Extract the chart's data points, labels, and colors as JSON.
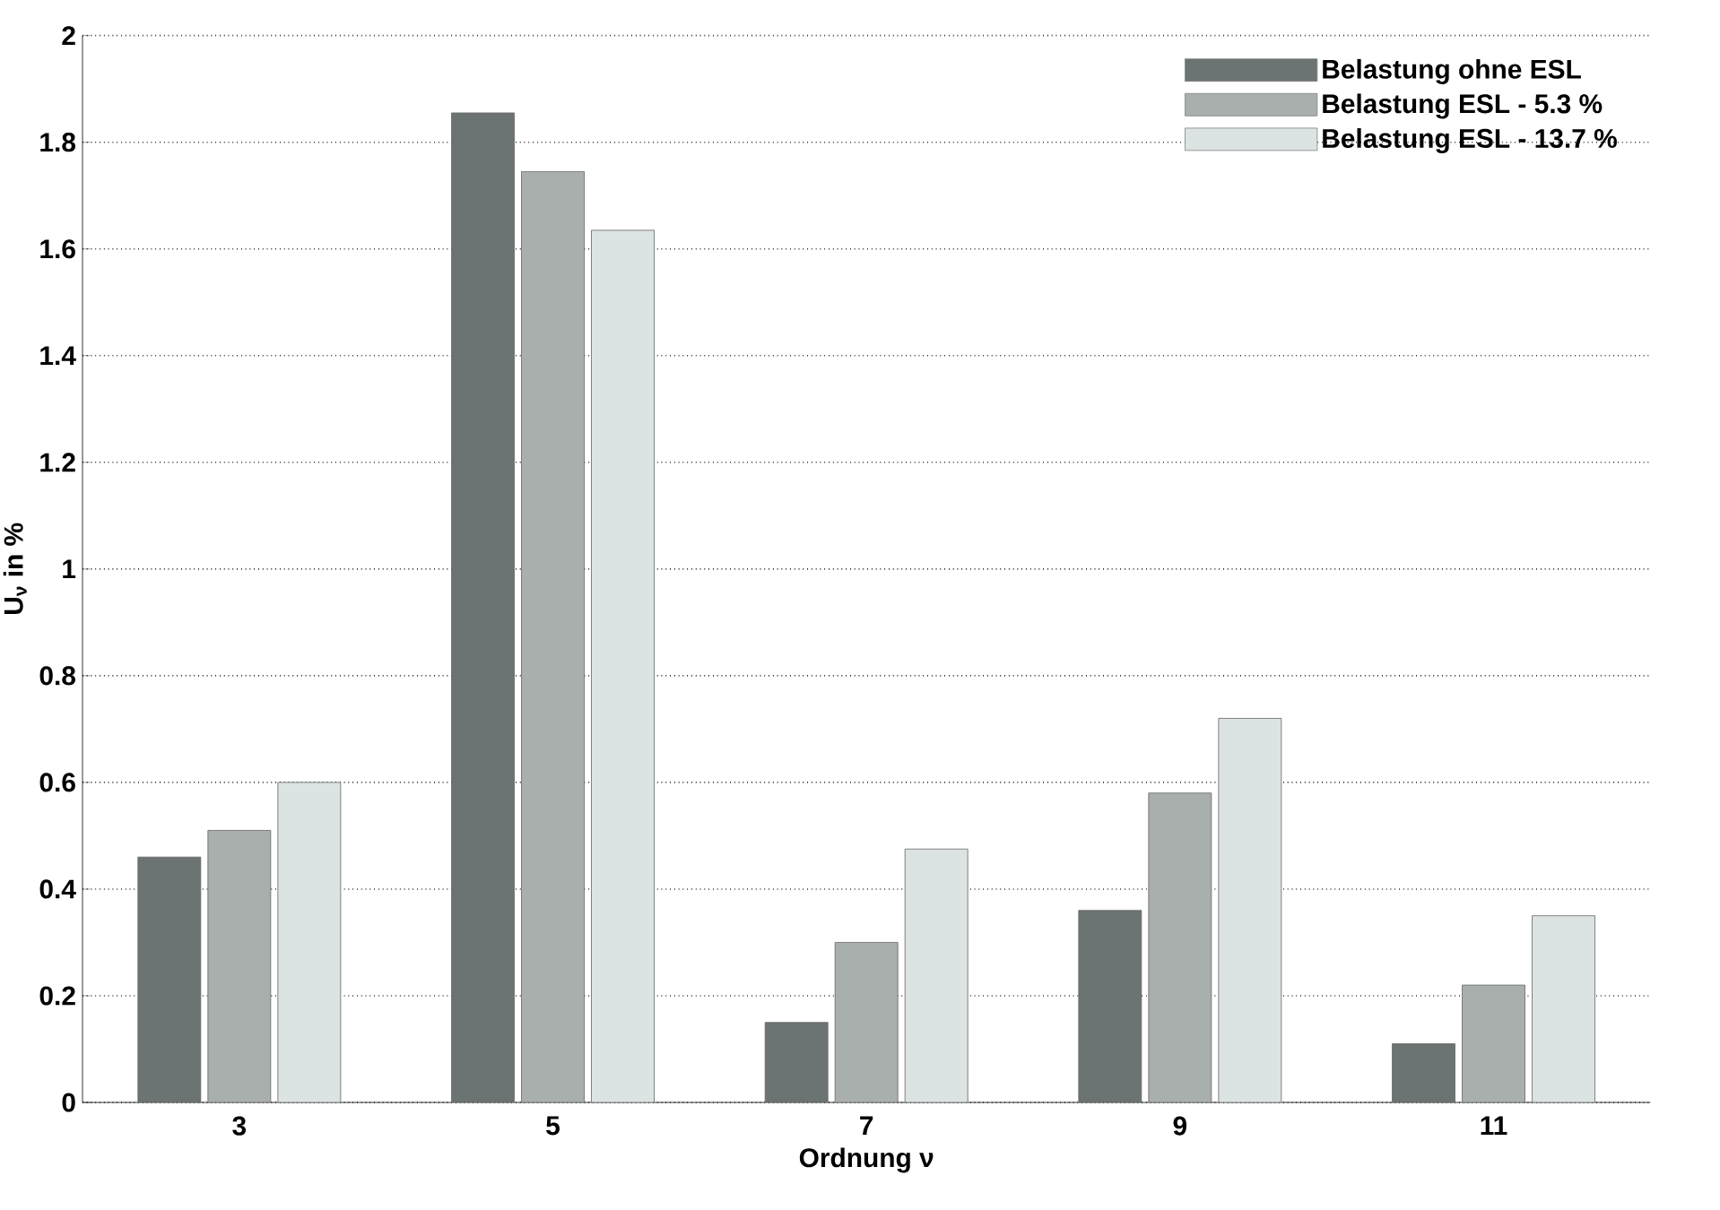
{
  "chart_data": {
    "type": "bar",
    "xlabel": "Ordnung ν",
    "ylabel": "U$_{ν}$ in %",
    "categories": [
      "3",
      "5",
      "7",
      "9",
      "11"
    ],
    "series": [
      {
        "name": "Belastung ohne ESL",
        "color": "#6b7472",
        "values": [
          0.46,
          1.855,
          0.15,
          0.36,
          0.11
        ]
      },
      {
        "name": "Belastung ESL - 5.3 %",
        "color": "#a9afad",
        "values": [
          0.51,
          1.745,
          0.3,
          0.58,
          0.22
        ]
      },
      {
        "name": "Belastung ESL - 13.7 %",
        "color": "#dce3e3",
        "values": [
          0.6,
          1.635,
          0.475,
          0.72,
          0.35
        ]
      }
    ],
    "ylim": [
      0,
      2
    ],
    "yticks": [
      0,
      0.2,
      0.4,
      0.6,
      0.8,
      1,
      1.2,
      1.4,
      1.6,
      1.8,
      2
    ],
    "grid": "y",
    "legend": "top right"
  }
}
